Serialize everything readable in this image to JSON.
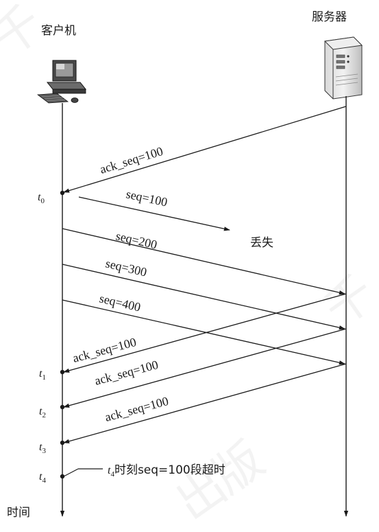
{
  "participants": {
    "client": "客户机",
    "server": "服务器"
  },
  "axis_label": "时间",
  "messages": [
    {
      "id": "ack1",
      "text": "ack_seq=100"
    },
    {
      "id": "seq100",
      "text": "seq=100"
    },
    {
      "id": "seq200",
      "text": "seq=200"
    },
    {
      "id": "seq300",
      "text": "seq=300"
    },
    {
      "id": "seq400",
      "text": "seq=400"
    },
    {
      "id": "ack2",
      "text": "ack_seq=100"
    },
    {
      "id": "ack3",
      "text": "ack_seq=100"
    },
    {
      "id": "ack4",
      "text": "ack_seq=100"
    }
  ],
  "lost_label": "丢失",
  "time_marks": [
    {
      "base": "t",
      "sub": "0"
    },
    {
      "base": "t",
      "sub": "1"
    },
    {
      "base": "t",
      "sub": "2"
    },
    {
      "base": "t",
      "sub": "3"
    },
    {
      "base": "t",
      "sub": "4"
    }
  ],
  "timeout_note": {
    "base": "t",
    "sub": "4",
    "text": "时刻seq=100段超时"
  },
  "icons": {
    "client": "desktop-computer-icon",
    "server": "server-tower-icon"
  }
}
